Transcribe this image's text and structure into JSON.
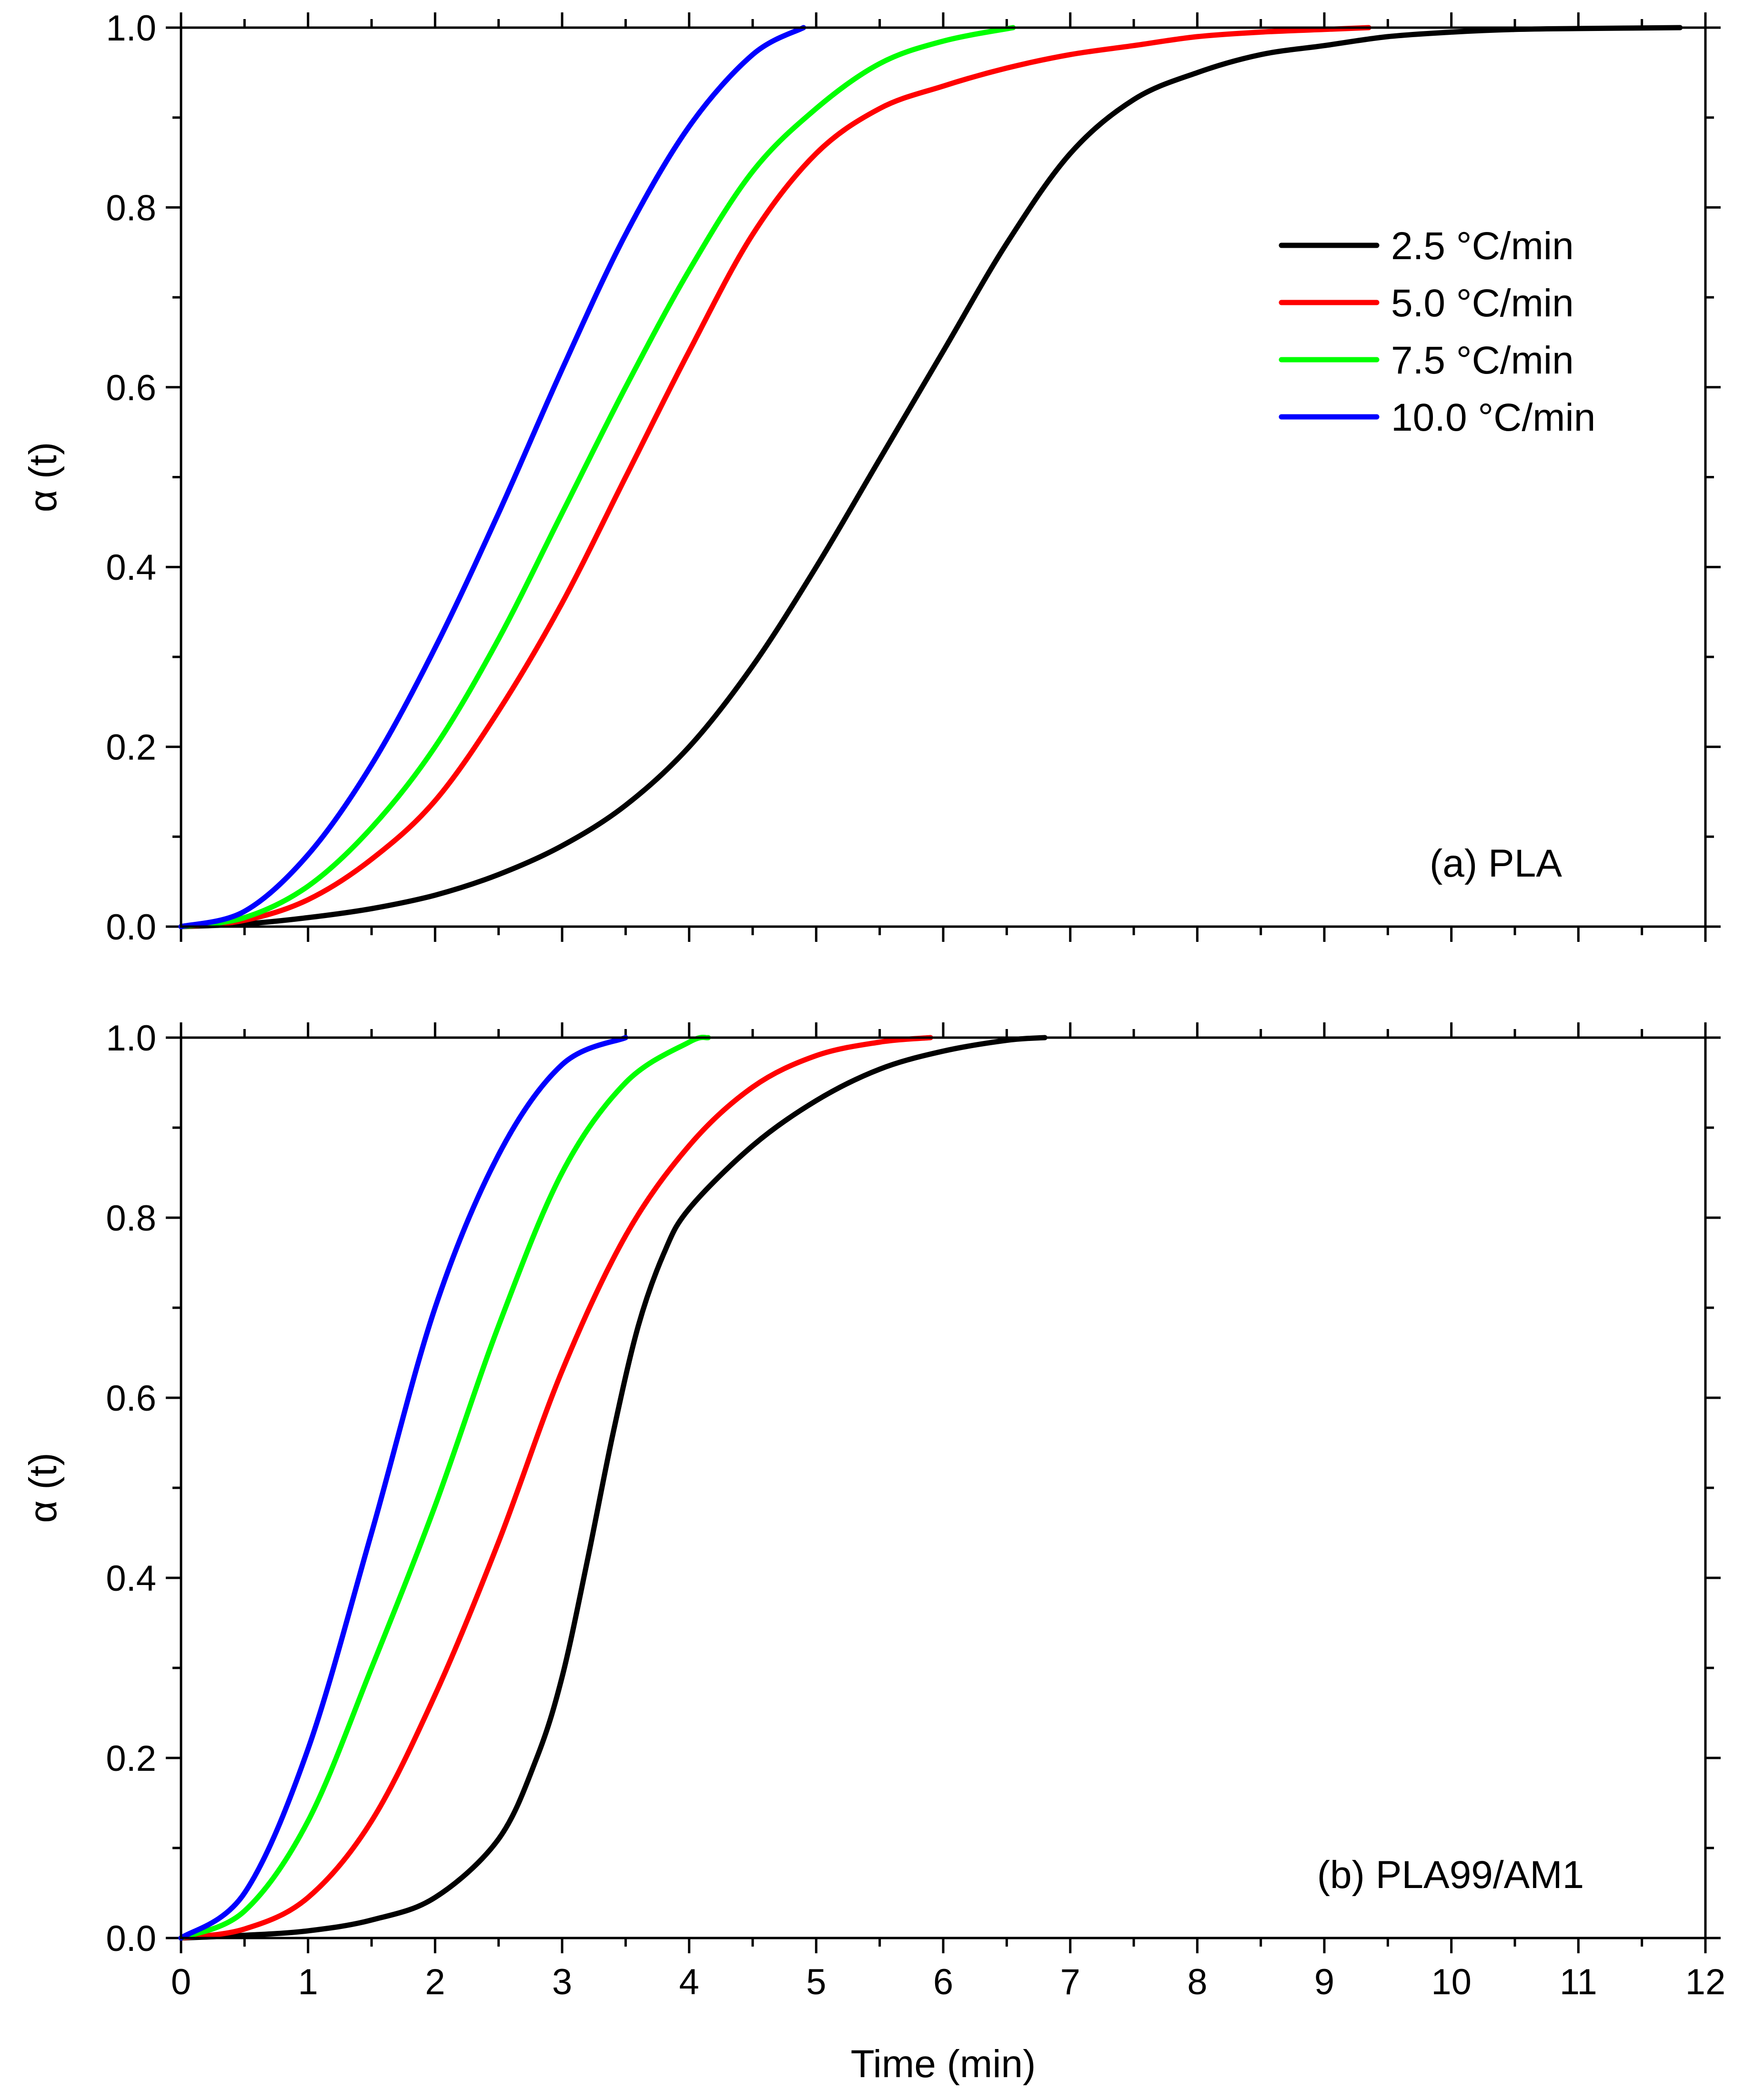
{
  "chart_data": [
    {
      "type": "line",
      "panel_label": "(a) PLA",
      "xlabel": "Time (min)",
      "ylabel": "α (t)",
      "xlim": [
        0,
        12
      ],
      "ylim": [
        0,
        1
      ],
      "x_ticks": [
        0,
        1,
        2,
        3,
        4,
        5,
        6,
        7,
        8,
        9,
        10,
        11,
        12
      ],
      "y_ticks": [
        "0.0",
        "0.2",
        "0.4",
        "0.6",
        "0.8",
        "1.0"
      ],
      "grid": false,
      "legend_position": "top-right",
      "series": [
        {
          "name": "2.5  °C/min",
          "color": "#000000",
          "x": [
            0,
            0.5,
            1,
            1.5,
            2,
            2.5,
            3,
            3.5,
            4,
            4.5,
            5,
            5.5,
            6,
            6.5,
            7,
            7.5,
            8,
            8.5,
            9,
            9.5,
            10,
            10.5,
            11,
            11.8
          ],
          "y": [
            0,
            0.003,
            0.01,
            0.02,
            0.035,
            0.058,
            0.09,
            0.135,
            0.2,
            0.29,
            0.4,
            0.52,
            0.64,
            0.76,
            0.86,
            0.92,
            0.95,
            0.97,
            0.98,
            0.99,
            0.995,
            0.998,
            0.999,
            1.0
          ]
        },
        {
          "name": "5.0  °C/min",
          "color": "#ff0000",
          "x": [
            0,
            0.5,
            1,
            1.5,
            2,
            2.5,
            3,
            3.5,
            4,
            4.5,
            5,
            5.5,
            6,
            6.5,
            7,
            7.5,
            8,
            8.5,
            9,
            9.35
          ],
          "y": [
            0,
            0.007,
            0.03,
            0.075,
            0.14,
            0.24,
            0.36,
            0.5,
            0.64,
            0.77,
            0.86,
            0.91,
            0.935,
            0.955,
            0.97,
            0.98,
            0.99,
            0.995,
            0.998,
            1.0
          ]
        },
        {
          "name": "7.5  °C/min",
          "color": "#00ff00",
          "x": [
            0,
            0.5,
            1,
            1.5,
            2,
            2.5,
            3,
            3.5,
            4,
            4.5,
            5,
            5.5,
            6,
            6.55
          ],
          "y": [
            0,
            0.01,
            0.045,
            0.11,
            0.2,
            0.32,
            0.46,
            0.6,
            0.73,
            0.84,
            0.91,
            0.96,
            0.985,
            1.0
          ]
        },
        {
          "name": "10.0  °C/min",
          "color": "#0000ff",
          "x": [
            0,
            0.5,
            1,
            1.5,
            2,
            2.5,
            3,
            3.5,
            4,
            4.5,
            4.9
          ],
          "y": [
            0,
            0.017,
            0.08,
            0.18,
            0.31,
            0.46,
            0.62,
            0.77,
            0.89,
            0.97,
            1.0
          ]
        }
      ]
    },
    {
      "type": "line",
      "panel_label": "(b) PLA99/AM1",
      "xlabel": "Time (min)",
      "ylabel": "α (t)",
      "xlim": [
        0,
        12
      ],
      "ylim": [
        0,
        1
      ],
      "x_ticks": [
        0,
        1,
        2,
        3,
        4,
        5,
        6,
        7,
        8,
        9,
        10,
        11,
        12
      ],
      "y_ticks": [
        "0.0",
        "0.2",
        "0.4",
        "0.6",
        "0.8",
        "1.0"
      ],
      "grid": false,
      "series": [
        {
          "name": "2.5  °C/min",
          "color": "#000000",
          "x": [
            0,
            0.5,
            1,
            1.5,
            2,
            2.5,
            2.8,
            3,
            3.2,
            3.4,
            3.6,
            3.8,
            4,
            4.5,
            5,
            5.5,
            6,
            6.5,
            6.8
          ],
          "y": [
            0,
            0.003,
            0.008,
            0.02,
            0.045,
            0.11,
            0.2,
            0.29,
            0.42,
            0.56,
            0.68,
            0.76,
            0.81,
            0.88,
            0.93,
            0.965,
            0.985,
            0.997,
            1.0
          ]
        },
        {
          "name": "5.0  °C/min",
          "color": "#ff0000",
          "x": [
            0,
            0.5,
            1,
            1.5,
            2,
            2.5,
            3,
            3.5,
            4,
            4.5,
            5,
            5.5,
            5.9
          ],
          "y": [
            0,
            0.01,
            0.045,
            0.13,
            0.27,
            0.44,
            0.63,
            0.78,
            0.88,
            0.945,
            0.98,
            0.995,
            1.0
          ]
        },
        {
          "name": "7.5  °C/min",
          "color": "#00ff00",
          "x": [
            0,
            0.5,
            1,
            1.5,
            2,
            2.5,
            3,
            3.5,
            4,
            4.15
          ],
          "y": [
            0,
            0.03,
            0.13,
            0.3,
            0.48,
            0.68,
            0.85,
            0.95,
            0.995,
            1.0
          ]
        },
        {
          "name": "10.0  °C/min",
          "color": "#0000ff",
          "x": [
            0,
            0.5,
            1,
            1.5,
            2,
            2.5,
            3,
            3.5
          ],
          "y": [
            0,
            0.05,
            0.21,
            0.45,
            0.7,
            0.87,
            0.97,
            1.0
          ]
        }
      ]
    }
  ]
}
